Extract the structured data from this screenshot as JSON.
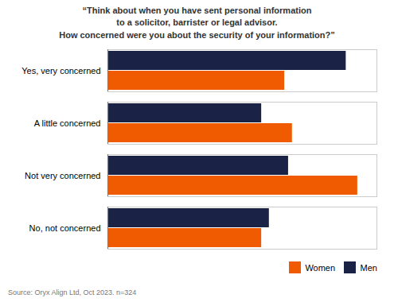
{
  "chart_data": {
    "type": "bar",
    "orientation": "horizontal",
    "title": "“Think about when you have sent personal information\nto a solicitor, barrister or legal advisor.\nHow concerned were you about the security of your information?”",
    "caption": "Source: Oryx Align Ltd, Oct 2023.   n=324",
    "categories": [
      "Yes, very concerned",
      "A little concerned",
      "Not very concerned",
      "No, not concerned"
    ],
    "series": [
      {
        "name": "Women",
        "color": "#f05a00",
        "values": [
          46,
          48,
          65,
          40
        ]
      },
      {
        "name": "Men",
        "color": "#1a2346",
        "values": [
          62,
          40,
          47,
          42
        ]
      }
    ],
    "xlim": [
      0,
      70
    ],
    "tick_labels": "y",
    "legend": "lower right"
  }
}
